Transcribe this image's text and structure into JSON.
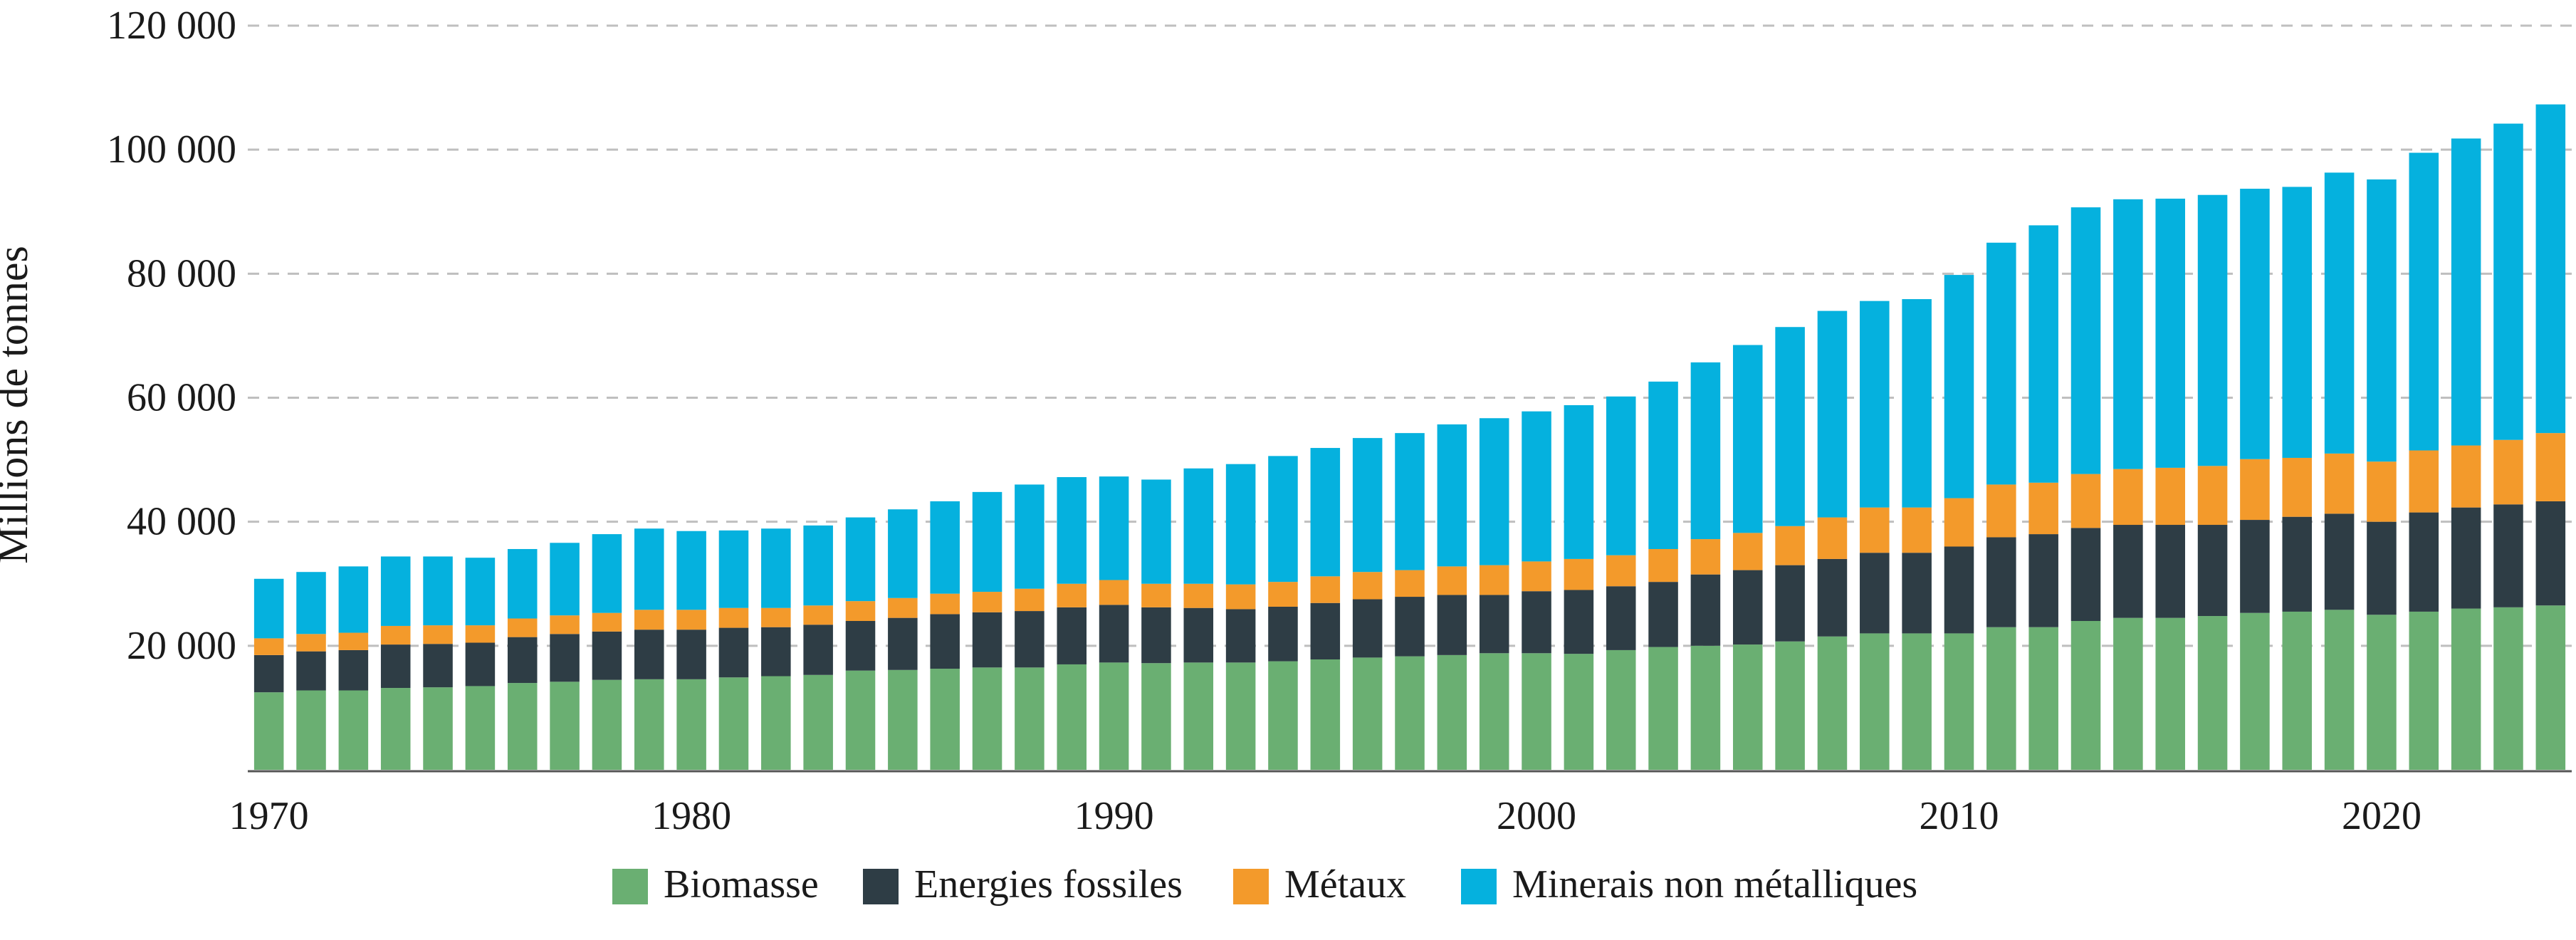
{
  "chart_data": {
    "type": "bar",
    "stacked": true,
    "title": "",
    "xlabel": "",
    "ylabel": "Millions de tonnes",
    "ylim": [
      0,
      120000
    ],
    "yticks": [
      20000,
      40000,
      60000,
      80000,
      100000,
      120000
    ],
    "ytick_labels": [
      "20 000",
      "40 000",
      "60 000",
      "80 000",
      "100 000",
      "120 000"
    ],
    "xtick_years": [
      1970,
      1980,
      1990,
      2000,
      2010,
      2020
    ],
    "xtick_labels": [
      "1970",
      "1980",
      "1990",
      "2000",
      "2010",
      "2020"
    ],
    "grid": true,
    "legend_position": "bottom-center",
    "categories": [
      1970,
      1971,
      1972,
      1973,
      1974,
      1975,
      1976,
      1977,
      1978,
      1979,
      1980,
      1981,
      1982,
      1983,
      1984,
      1985,
      1986,
      1987,
      1988,
      1989,
      1990,
      1991,
      1992,
      1993,
      1994,
      1995,
      1996,
      1997,
      1998,
      1999,
      2000,
      2001,
      2002,
      2003,
      2004,
      2005,
      2006,
      2007,
      2008,
      2009,
      2010,
      2011,
      2012,
      2013,
      2014,
      2015,
      2016,
      2017,
      2018,
      2019,
      2020,
      2021,
      2022,
      2023,
      2024
    ],
    "series": [
      {
        "name": "Biomasse",
        "color": "#6aaf72",
        "values": [
          12500,
          12800,
          12800,
          13200,
          13300,
          13500,
          14000,
          14200,
          14500,
          14600,
          14600,
          14900,
          15100,
          15300,
          16000,
          16100,
          16300,
          16500,
          16500,
          17000,
          17300,
          17200,
          17300,
          17300,
          17500,
          17800,
          18100,
          18300,
          18500,
          18800,
          18800,
          18700,
          19300,
          19800,
          20000,
          20200,
          20700,
          21500,
          22000,
          22000,
          22000,
          23000,
          23000,
          24000,
          24500,
          24500,
          24800,
          25300,
          25500,
          25800,
          25000,
          25500,
          26000,
          26200,
          26500
        ]
      },
      {
        "name": "Energies fossiles",
        "color": "#2e3d45",
        "values": [
          6000,
          6300,
          6500,
          7000,
          7000,
          7000,
          7400,
          7700,
          7800,
          8000,
          8000,
          8000,
          7900,
          8100,
          8000,
          8400,
          8800,
          8900,
          9100,
          9200,
          9300,
          9000,
          8800,
          8600,
          8800,
          9100,
          9400,
          9600,
          9700,
          9400,
          10000,
          10300,
          10300,
          10500,
          11500,
          12000,
          12300,
          12500,
          13000,
          13000,
          14000,
          14500,
          15000,
          15000,
          15000,
          15000,
          14700,
          15000,
          15300,
          15500,
          15000,
          16000,
          16300,
          16600,
          16800
        ]
      },
      {
        "name": "Métaux",
        "color": "#f39a2b",
        "values": [
          2700,
          2800,
          2800,
          3000,
          3000,
          2800,
          3000,
          3000,
          3000,
          3200,
          3200,
          3200,
          3100,
          3100,
          3200,
          3200,
          3300,
          3300,
          3600,
          3800,
          4000,
          3800,
          3900,
          4000,
          4000,
          4300,
          4400,
          4300,
          4600,
          4800,
          4800,
          5000,
          5000,
          5300,
          5700,
          6000,
          6300,
          6700,
          7300,
          7300,
          7800,
          8500,
          8300,
          8700,
          9000,
          9200,
          9500,
          9800,
          9500,
          9700,
          9700,
          10000,
          10000,
          10400,
          11000
        ]
      },
      {
        "name": "Minerais non métalliques",
        "color": "#05b1de",
        "values": [
          9600,
          10000,
          10700,
          11200,
          11100,
          10900,
          11200,
          11700,
          12700,
          13100,
          12700,
          12500,
          12800,
          12900,
          13500,
          14300,
          14900,
          16100,
          16800,
          17200,
          16700,
          16800,
          18600,
          19400,
          20300,
          20700,
          21600,
          22100,
          22900,
          23700,
          24200,
          24800,
          25600,
          27000,
          28500,
          30300,
          32100,
          33300,
          33300,
          33600,
          36000,
          39000,
          41500,
          43000,
          43500,
          43400,
          43700,
          43600,
          43700,
          45300,
          45500,
          48000,
          49500,
          51000,
          53000
        ]
      }
    ]
  }
}
